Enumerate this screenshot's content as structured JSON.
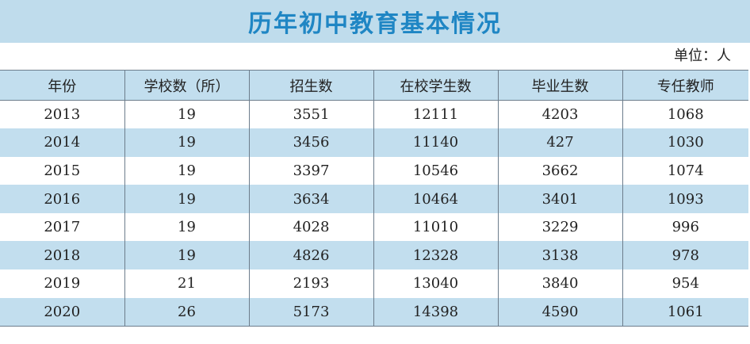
{
  "title": "历年初中教育基本情况",
  "unit": "单位：人",
  "headers": [
    "年份",
    "学校数（所）",
    "招生数",
    "在校学生数",
    "毕业生数",
    "专任教师"
  ],
  "rows": [
    [
      "2013",
      "19",
      "3551",
      "12111",
      "4203",
      "1068"
    ],
    [
      "2014",
      "19",
      "3456",
      "11140",
      "427",
      "1030"
    ],
    [
      "2015",
      "19",
      "3397",
      "10546",
      "3662",
      "1074"
    ],
    [
      "2016",
      "19",
      "3634",
      "10464",
      "3401",
      "1093"
    ],
    [
      "2017",
      "19",
      "4028",
      "11010",
      "3229",
      "996"
    ],
    [
      "2018",
      "19",
      "4826",
      "12328",
      "3138",
      "978"
    ],
    [
      "2019",
      "21",
      "2193",
      "13040",
      "3840",
      "954"
    ],
    [
      "2020",
      "26",
      "5173",
      "14398",
      "4590",
      "1061"
    ]
  ],
  "colors": {
    "title": "#1f86c4",
    "band": "#c2deee",
    "title_band": "#bfdcec",
    "rule": "#6d7d8c"
  }
}
